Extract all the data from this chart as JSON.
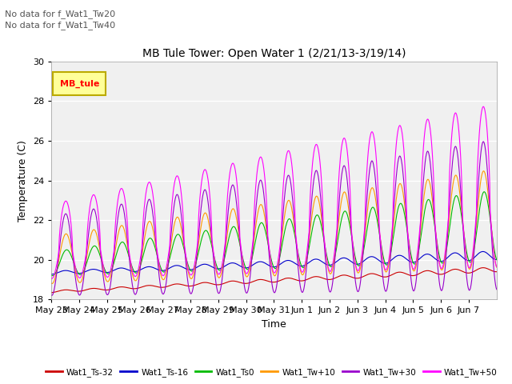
{
  "title": "MB Tule Tower: Open Water 1 (2/21/13-3/19/14)",
  "subtitle1": "No data for f_Wat1_Tw20",
  "subtitle2": "No data for f_Wat1_Tw40",
  "ylabel": "Temperature (C)",
  "xlabel": "Time",
  "ylim": [
    18,
    30
  ],
  "yticks": [
    18,
    20,
    22,
    24,
    26,
    28,
    30
  ],
  "legend_label": "MB_tule",
  "legend_box_color": "#ffff99",
  "legend_box_border": "#bbaa00",
  "bg_color": "#e8e8e8",
  "plot_bg": "#f0f0f0",
  "series": [
    {
      "name": "Wat1_Ts-32",
      "color": "#cc0000"
    },
    {
      "name": "Wat1_Ts-16",
      "color": "#0000cc"
    },
    {
      "name": "Wat1_Ts0",
      "color": "#00bb00"
    },
    {
      "name": "Wat1_Tw+10",
      "color": "#ff9900"
    },
    {
      "name": "Wat1_Tw+30",
      "color": "#9900cc"
    },
    {
      "name": "Wat1_Tw+50",
      "color": "#ff00ff"
    }
  ],
  "xtick_labels": [
    "May 23",
    "May 24",
    "May 25",
    "May 26",
    "May 27",
    "May 28",
    "May 29",
    "May 30",
    "May 31",
    "Jun 1",
    "Jun 2",
    "Jun 3",
    "Jun 4",
    "Jun 5",
    "Jun 6",
    "Jun 7"
  ],
  "n_days": 16,
  "points_per_day": 48
}
